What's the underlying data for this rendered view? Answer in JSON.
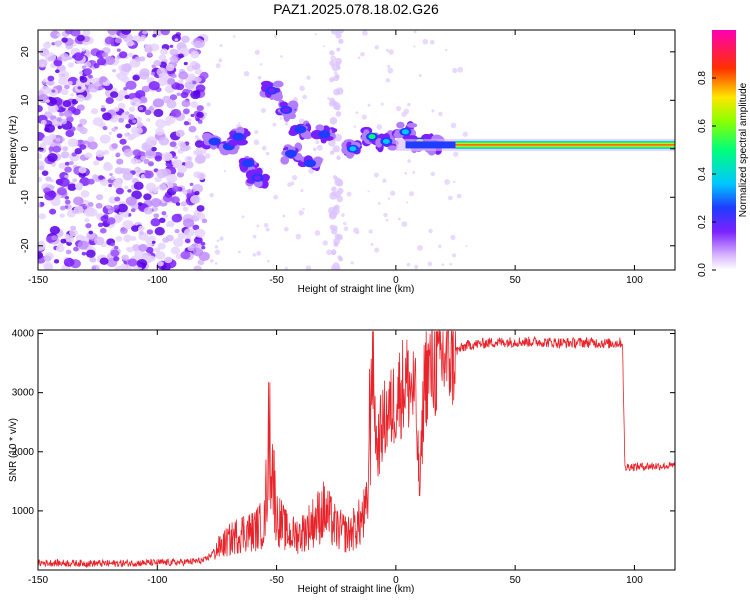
{
  "title": "PAZ1.2025.078.18.02.G26",
  "colors": {
    "snr_line": "#e8232a",
    "spectral_purple": "#6a0dff",
    "spectral_light": "#d9b8ff"
  },
  "chart_data": [
    {
      "type": "heatmap",
      "name": "spectrogram",
      "xlabel": "Height of straight line (km)",
      "ylabel": "Frequency (Hz)",
      "xlim": [
        -150,
        117
      ],
      "ylim": [
        -25,
        24.5
      ],
      "xticks": [
        -150,
        -100,
        -50,
        0,
        50,
        100
      ],
      "xtick_labels": [
        "-150",
        "-100",
        "-50",
        "0",
        "50",
        "100"
      ],
      "yticks": [
        -20,
        -10,
        0,
        10,
        20
      ],
      "ytick_labels": [
        "-20",
        "-10",
        "0",
        "10",
        "20"
      ],
      "colorbar": {
        "label": "Normalized spectral amplitude",
        "range": [
          0,
          1
        ],
        "ticks": [
          0.0,
          0.2,
          0.4,
          0.6,
          0.8
        ],
        "tick_labels": [
          "0.0",
          "0.2",
          "0.4",
          "0.6",
          "0.8"
        ],
        "colormap": "white-purple-blue-cyan-green-yellow-red-magenta"
      },
      "features": {
        "noise_region_x": [
          -150,
          -80
        ],
        "dominant_band_freq_hz": 0.8,
        "dominant_band_x": [
          25,
          117
        ],
        "peak_amplitude": 0.85,
        "clusters": [
          {
            "x": -76,
            "y": 1.5,
            "amp": 0.35
          },
          {
            "x": -70,
            "y": 0.5,
            "amp": 0.3
          },
          {
            "x": -66,
            "y": 2.5,
            "amp": 0.28
          },
          {
            "x": -62,
            "y": -3,
            "amp": 0.3
          },
          {
            "x": -58,
            "y": -6,
            "amp": 0.25
          },
          {
            "x": -52,
            "y": 12,
            "amp": 0.2
          },
          {
            "x": -46,
            "y": 8,
            "amp": 0.22
          },
          {
            "x": -44,
            "y": -1,
            "amp": 0.28
          },
          {
            "x": -40,
            "y": 4,
            "amp": 0.3
          },
          {
            "x": -36,
            "y": -3,
            "amp": 0.26
          },
          {
            "x": -30,
            "y": 3,
            "amp": 0.3
          },
          {
            "x": -18,
            "y": 0,
            "amp": 0.4
          },
          {
            "x": -10,
            "y": 2.5,
            "amp": 0.5
          },
          {
            "x": -4,
            "y": 1.5,
            "amp": 0.45
          },
          {
            "x": 4,
            "y": 3.5,
            "amp": 0.45
          },
          {
            "x": 10,
            "y": 1.5,
            "amp": 0.6
          },
          {
            "x": 16,
            "y": 1,
            "amp": 0.6
          }
        ]
      }
    },
    {
      "type": "line",
      "name": "snr",
      "xlabel": "Height of straight line (km)",
      "ylabel": "SNR (10 * v/v)",
      "xlim": [
        -150,
        117
      ],
      "ylim": [
        0,
        4060
      ],
      "xticks": [
        -150,
        -100,
        -50,
        0,
        50,
        100
      ],
      "xtick_labels": [
        "-150",
        "-100",
        "-50",
        "0",
        "50",
        "100"
      ],
      "yticks": [
        1000,
        2000,
        3000,
        4000
      ],
      "ytick_labels": [
        "1000",
        "2000",
        "3000",
        "4000"
      ],
      "x": [
        -150,
        -120,
        -90,
        -80,
        -76,
        -70,
        -64,
        -60,
        -55,
        -53,
        -50,
        -45,
        -40,
        -35,
        -30,
        -25,
        -20,
        -15,
        -12,
        -10,
        -8,
        -6,
        -4,
        -2,
        0,
        4,
        8,
        10,
        12,
        15,
        20,
        25,
        30,
        40,
        50,
        60,
        70,
        80,
        90,
        95,
        96,
        97,
        100,
        110,
        117
      ],
      "y": [
        120,
        110,
        130,
        160,
        320,
        500,
        650,
        650,
        800,
        2400,
        900,
        600,
        600,
        800,
        1000,
        700,
        600,
        800,
        1000,
        3800,
        2000,
        2400,
        2600,
        2700,
        2900,
        3200,
        3000,
        1300,
        3300,
        3400,
        3600,
        3700,
        3800,
        3850,
        3860,
        3860,
        3840,
        3850,
        3830,
        3850,
        1700,
        1750,
        1750,
        1760,
        1760
      ]
    }
  ]
}
